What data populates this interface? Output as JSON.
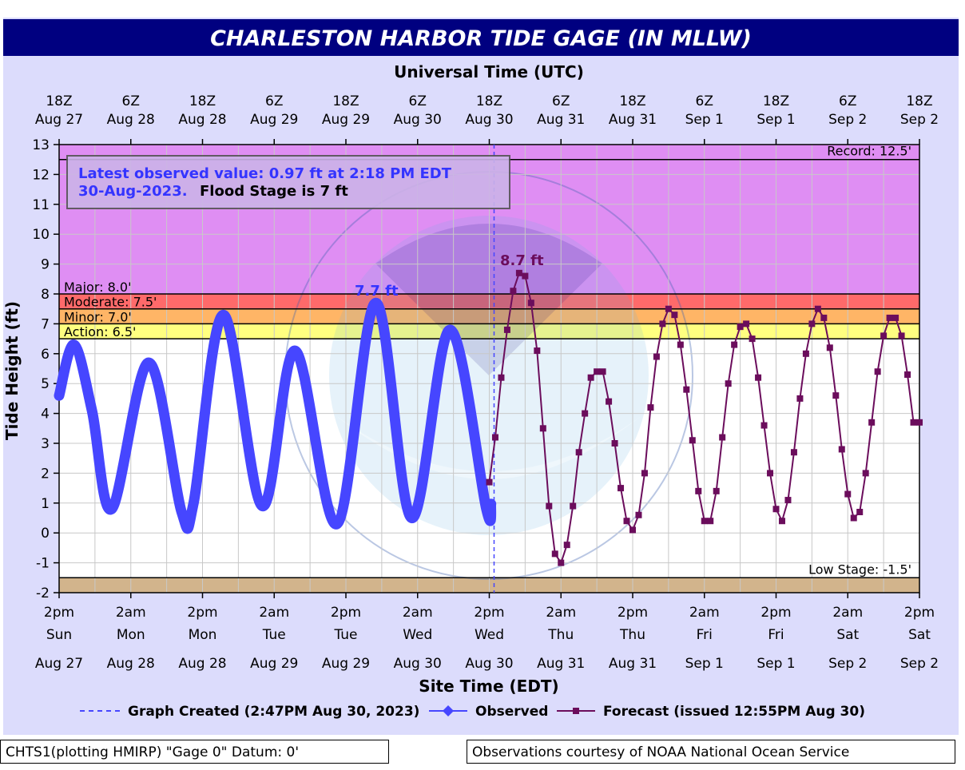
{
  "colors": {
    "frame_bg": "#dcdcfc",
    "title_bar": "#000080",
    "record_zone": "#df8ef3",
    "major_zone": "#ff6a6a",
    "moderate_zone": "#ffb566",
    "minor_zone": "#ffff80",
    "below_low_zone": "#d2b48c",
    "observed": "#4646ff",
    "forecast": "#6b0d5c",
    "info_text": "#3434ff"
  },
  "chart_data": {
    "type": "line",
    "title": "CHARLESTON HARBOR TIDE GAGE (IN MLLW)",
    "top_axis_label": "Universal Time (UTC)",
    "top_ticks": [
      {
        "line1": "18Z",
        "line2": "Aug 27"
      },
      {
        "line1": "6Z",
        "line2": "Aug 28"
      },
      {
        "line1": "18Z",
        "line2": "Aug 28"
      },
      {
        "line1": "6Z",
        "line2": "Aug 29"
      },
      {
        "line1": "18Z",
        "line2": "Aug 29"
      },
      {
        "line1": "6Z",
        "line2": "Aug 30"
      },
      {
        "line1": "18Z",
        "line2": "Aug 30"
      },
      {
        "line1": "6Z",
        "line2": "Aug 31"
      },
      {
        "line1": "18Z",
        "line2": "Aug 31"
      },
      {
        "line1": "6Z",
        "line2": "Sep 1"
      },
      {
        "line1": "18Z",
        "line2": "Sep 1"
      },
      {
        "line1": "6Z",
        "line2": "Sep 2"
      },
      {
        "line1": "18Z",
        "line2": "Sep 2"
      }
    ],
    "xlabel": "Site Time (EDT)",
    "bottom_ticks": [
      {
        "time": "2pm",
        "day": "Sun",
        "date": "Aug 27"
      },
      {
        "time": "2am",
        "day": "Mon",
        "date": "Aug 28"
      },
      {
        "time": "2pm",
        "day": "Mon",
        "date": "Aug 28"
      },
      {
        "time": "2am",
        "day": "Tue",
        "date": "Aug 29"
      },
      {
        "time": "2pm",
        "day": "Tue",
        "date": "Aug 29"
      },
      {
        "time": "2am",
        "day": "Wed",
        "date": "Aug 30"
      },
      {
        "time": "2pm",
        "day": "Wed",
        "date": "Aug 30"
      },
      {
        "time": "2am",
        "day": "Thu",
        "date": "Aug 31"
      },
      {
        "time": "2pm",
        "day": "Thu",
        "date": "Aug 31"
      },
      {
        "time": "2am",
        "day": "Fri",
        "date": "Sep 1"
      },
      {
        "time": "2pm",
        "day": "Fri",
        "date": "Sep 1"
      },
      {
        "time": "2am",
        "day": "Sat",
        "date": "Sep 2"
      },
      {
        "time": "2pm",
        "day": "Sat",
        "date": "Sep 2"
      }
    ],
    "x_unit": "hours after 2pm EDT Sun Aug 27",
    "xlim": [
      0,
      144
    ],
    "ylabel": "Tide Height (ft)",
    "ylim": [
      -2,
      13
    ],
    "yticks": [
      -2,
      -1,
      0,
      1,
      2,
      3,
      4,
      5,
      6,
      7,
      8,
      9,
      10,
      11,
      12,
      13
    ],
    "grid": true,
    "stage_lines": [
      {
        "label": "Record: 12.5'",
        "value": 12.5
      },
      {
        "label": "Major: 8.0'",
        "value": 8.0
      },
      {
        "label": "Moderate: 7.5'",
        "value": 7.5
      },
      {
        "label": "Minor: 7.0'",
        "value": 7.0
      },
      {
        "label": "Action: 6.5'",
        "value": 6.5
      },
      {
        "label": "Low Stage: -1.5'",
        "value": -1.5
      }
    ],
    "info_line1": "Latest observed value: 0.97 ft at 2:18 PM EDT",
    "info_line2_date": "30-Aug-2023.",
    "info_line2_flood": "Flood Stage is 7 ft",
    "observed_peak_label": "7.7 ft",
    "forecast_peak_label": "8.7 ft",
    "graph_created_x": 72.8,
    "observed": {
      "name": "Observed",
      "points": [
        [
          0,
          4.6
        ],
        [
          2.5,
          6.3
        ],
        [
          5.5,
          4.1
        ],
        [
          8.8,
          0.8
        ],
        [
          15,
          5.7
        ],
        [
          20.5,
          0.7
        ],
        [
          22.5,
          1.0
        ],
        [
          27.5,
          7.3
        ],
        [
          34,
          0.9
        ],
        [
          39.5,
          6.1
        ],
        [
          46.5,
          0.3
        ],
        [
          53,
          7.7
        ],
        [
          59,
          0.5
        ],
        [
          65.4,
          6.8
        ],
        [
          71.5,
          0.8
        ],
        [
          72.3,
          0.97
        ]
      ]
    },
    "forecast": {
      "name": "Forecast (issued 12:55PM Aug 30)",
      "points": [
        [
          72,
          1.7
        ],
        [
          73,
          3.2
        ],
        [
          74,
          5.2
        ],
        [
          75,
          6.8
        ],
        [
          76,
          8.1
        ],
        [
          77,
          8.7
        ],
        [
          78,
          8.6
        ],
        [
          79,
          7.7
        ],
        [
          80,
          6.1
        ],
        [
          81,
          3.5
        ],
        [
          82,
          0.9
        ],
        [
          83,
          -0.7
        ],
        [
          84,
          -1.0
        ],
        [
          85,
          -0.4
        ],
        [
          86,
          0.9
        ],
        [
          87,
          2.7
        ],
        [
          88,
          4.0
        ],
        [
          89,
          5.2
        ],
        [
          90,
          5.4
        ],
        [
          91,
          5.4
        ],
        [
          92,
          4.4
        ],
        [
          93,
          3.0
        ],
        [
          94,
          1.5
        ],
        [
          95,
          0.4
        ],
        [
          96,
          0.1
        ],
        [
          97,
          0.6
        ],
        [
          98,
          2.0
        ],
        [
          99,
          4.2
        ],
        [
          100,
          5.9
        ],
        [
          101,
          7.0
        ],
        [
          102,
          7.5
        ],
        [
          103,
          7.3
        ],
        [
          104,
          6.3
        ],
        [
          105,
          4.8
        ],
        [
          106,
          3.1
        ],
        [
          107,
          1.4
        ],
        [
          108,
          0.4
        ],
        [
          109,
          0.4
        ],
        [
          110,
          1.4
        ],
        [
          111,
          3.2
        ],
        [
          112,
          5.0
        ],
        [
          113,
          6.3
        ],
        [
          114,
          6.9
        ],
        [
          115,
          7.0
        ],
        [
          116,
          6.5
        ],
        [
          117,
          5.2
        ],
        [
          118,
          3.6
        ],
        [
          119,
          2.0
        ],
        [
          120,
          0.8
        ],
        [
          121,
          0.4
        ],
        [
          122,
          1.1
        ],
        [
          123,
          2.7
        ],
        [
          124,
          4.5
        ],
        [
          125,
          6.0
        ],
        [
          126,
          7.0
        ],
        [
          127,
          7.5
        ],
        [
          128,
          7.2
        ],
        [
          129,
          6.2
        ],
        [
          130,
          4.6
        ],
        [
          131,
          2.8
        ],
        [
          132,
          1.3
        ],
        [
          133,
          0.5
        ],
        [
          134,
          0.7
        ],
        [
          135,
          2.0
        ],
        [
          136,
          3.7
        ],
        [
          137,
          5.4
        ],
        [
          138,
          6.6
        ],
        [
          139,
          7.2
        ],
        [
          140,
          7.2
        ],
        [
          141,
          6.6
        ],
        [
          142,
          5.3
        ],
        [
          143,
          3.7
        ],
        [
          144,
          3.7
        ]
      ]
    },
    "legend": {
      "created_label": "Graph Created (2:47PM Aug 30, 2023)",
      "observed_label": "Observed",
      "forecast_label": "Forecast (issued 12:55PM Aug 30)"
    }
  },
  "footer": {
    "left": "CHTS1(plotting HMIRP) \"Gage 0\" Datum: 0'",
    "right": "Observations courtesy of NOAA National Ocean Service"
  }
}
